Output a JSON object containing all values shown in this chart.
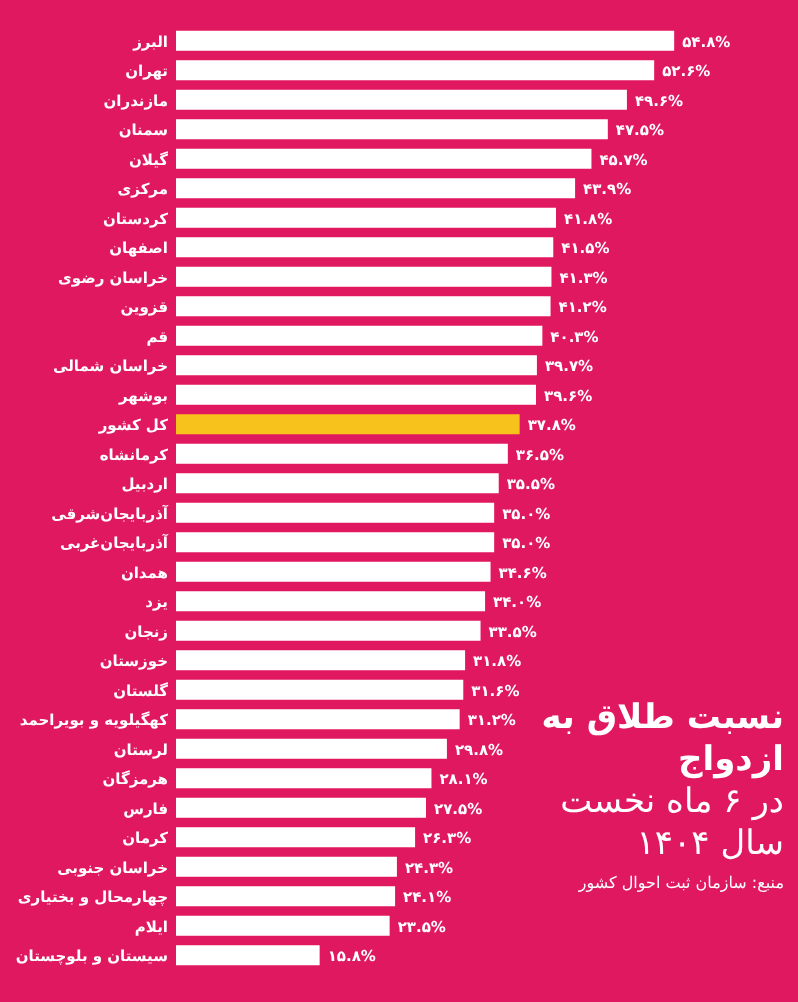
{
  "chart_data": {
    "type": "bar",
    "orientation": "horizontal",
    "title": "نسبت طلاق به ازدواج",
    "subtitle": "در ۶ ماه نخست سال ۱۴۰۴",
    "annotations": [
      "منبع: سازمان ثبت احوال کشور"
    ],
    "categories": [
      "البرز",
      "تهران",
      "مازندران",
      "سمنان",
      "گیلان",
      "مرکزی",
      "کردستان",
      "اصفهان",
      "خراسان رضوی",
      "قزوین",
      "قم",
      "خراسان شمالی",
      "بوشهر",
      "کل کشور",
      "کرمانشاه",
      "اردبیل",
      "آذربایجان‌شرقی",
      "آذربایجان‌غربی",
      "همدان",
      "یزد",
      "زنجان",
      "خوزستان",
      "گلستان",
      "کهگیلویه و بویراحمد",
      "لرستان",
      "هرمزگان",
      "فارس",
      "کرمان",
      "خراسان جنوبی",
      "چهارمحال و بختیاری",
      "ایلام",
      "سیستان و بلوچستان"
    ],
    "values": [
      54.8,
      52.6,
      49.6,
      47.5,
      45.7,
      43.9,
      41.8,
      41.5,
      41.3,
      41.2,
      40.3,
      39.7,
      39.6,
      37.8,
      36.5,
      35.5,
      35.0,
      35.0,
      34.6,
      34.0,
      33.5,
      31.8,
      31.6,
      31.2,
      29.8,
      28.1,
      27.5,
      26.3,
      24.3,
      24.1,
      23.5,
      15.8
    ],
    "value_labels": [
      "۵۴.۸%",
      "۵۲.۶%",
      "۴۹.۶%",
      "۴۷.۵%",
      "۴۵.۷%",
      "۴۳.۹%",
      "۴۱.۸%",
      "۴۱.۵%",
      "۴۱.۳%",
      "۴۱.۲%",
      "۴۰.۳%",
      "۳۹.۷%",
      "۳۹.۶%",
      "۳۷.۸%",
      "۳۶.۵%",
      "۳۵.۵%",
      "۳۵.۰%",
      "۳۵.۰%",
      "۳۴.۶%",
      "۳۴.۰%",
      "۳۳.۵%",
      "۳۱.۸%",
      "۳۱.۶%",
      "۳۱.۲%",
      "۲۹.۸%",
      "۲۸.۱%",
      "۲۷.۵%",
      "۲۶.۳%",
      "۲۴.۳%",
      "۲۴.۱%",
      "۲۳.۵%",
      "۱۵.۸%"
    ],
    "colors": [
      "#ffffff",
      "#ffffff",
      "#ffffff",
      "#ffffff",
      "#ffffff",
      "#ffffff",
      "#ffffff",
      "#ffffff",
      "#ffffff",
      "#ffffff",
      "#ffffff",
      "#ffffff",
      "#ffffff",
      "#f7c21b",
      "#ffffff",
      "#ffffff",
      "#ffffff",
      "#ffffff",
      "#ffffff",
      "#ffffff",
      "#ffffff",
      "#ffffff",
      "#ffffff",
      "#ffffff",
      "#ffffff",
      "#ffffff",
      "#ffffff",
      "#ffffff",
      "#ffffff",
      "#ffffff",
      "#ffffff",
      "#ffffff"
    ],
    "data_labels": false
  }
}
